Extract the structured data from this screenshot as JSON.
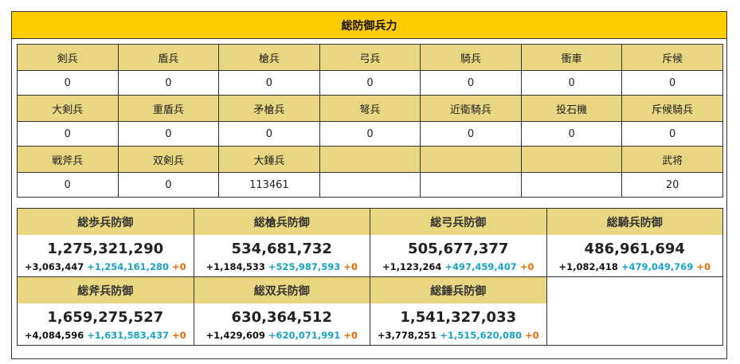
{
  "title": "総防御兵力",
  "units": {
    "row1": [
      {
        "name": "剣兵",
        "value": "0"
      },
      {
        "name": "盾兵",
        "value": "0"
      },
      {
        "name": "槍兵",
        "value": "0"
      },
      {
        "name": "弓兵",
        "value": "0"
      },
      {
        "name": "騎兵",
        "value": "0"
      },
      {
        "name": "衝車",
        "value": "0"
      },
      {
        "name": "斥候",
        "value": "0"
      }
    ],
    "row2": [
      {
        "name": "大剣兵",
        "value": "0"
      },
      {
        "name": "重盾兵",
        "value": "0"
      },
      {
        "name": "矛槍兵",
        "value": "0"
      },
      {
        "name": "弩兵",
        "value": "0"
      },
      {
        "name": "近衛騎兵",
        "value": "0"
      },
      {
        "name": "投石機",
        "value": "0"
      },
      {
        "name": "斥候騎兵",
        "value": "0"
      }
    ],
    "row3": [
      {
        "name": "戦斧兵",
        "value": "0"
      },
      {
        "name": "双剣兵",
        "value": "0"
      },
      {
        "name": "大錘兵",
        "value": "113461"
      },
      {
        "name": "武将",
        "value": "20"
      }
    ]
  },
  "defense": [
    {
      "label": "総歩兵防御",
      "total": "1,275,321,290",
      "a": "+3,063,447",
      "b": "+1,254,161,280",
      "c": "+0"
    },
    {
      "label": "総槍兵防御",
      "total": "534,681,732",
      "a": "+1,184,533",
      "b": "+525,987,593",
      "c": "+0"
    },
    {
      "label": "総弓兵防御",
      "total": "505,677,377",
      "a": "+1,123,264",
      "b": "+497,459,407",
      "c": "+0"
    },
    {
      "label": "総騎兵防御",
      "total": "486,961,694",
      "a": "+1,082,418",
      "b": "+479,049,769",
      "c": "+0"
    },
    {
      "label": "総斧兵防御",
      "total": "1,659,275,527",
      "a": "+4,084,596",
      "b": "+1,631,583,437",
      "c": "+0"
    },
    {
      "label": "総双兵防御",
      "total": "630,364,512",
      "a": "+1,429,609",
      "b": "+620,071,991",
      "c": "+0"
    },
    {
      "label": "総錘兵防御",
      "total": "1,541,327,033",
      "a": "+3,778,251",
      "b": "+1,515,620,080",
      "c": "+0"
    }
  ],
  "colors": {
    "header": "#ffcc00",
    "cell_header": "#e8d680",
    "blue_value": "#1aa3c8",
    "orange_value": "#ee6a00"
  }
}
